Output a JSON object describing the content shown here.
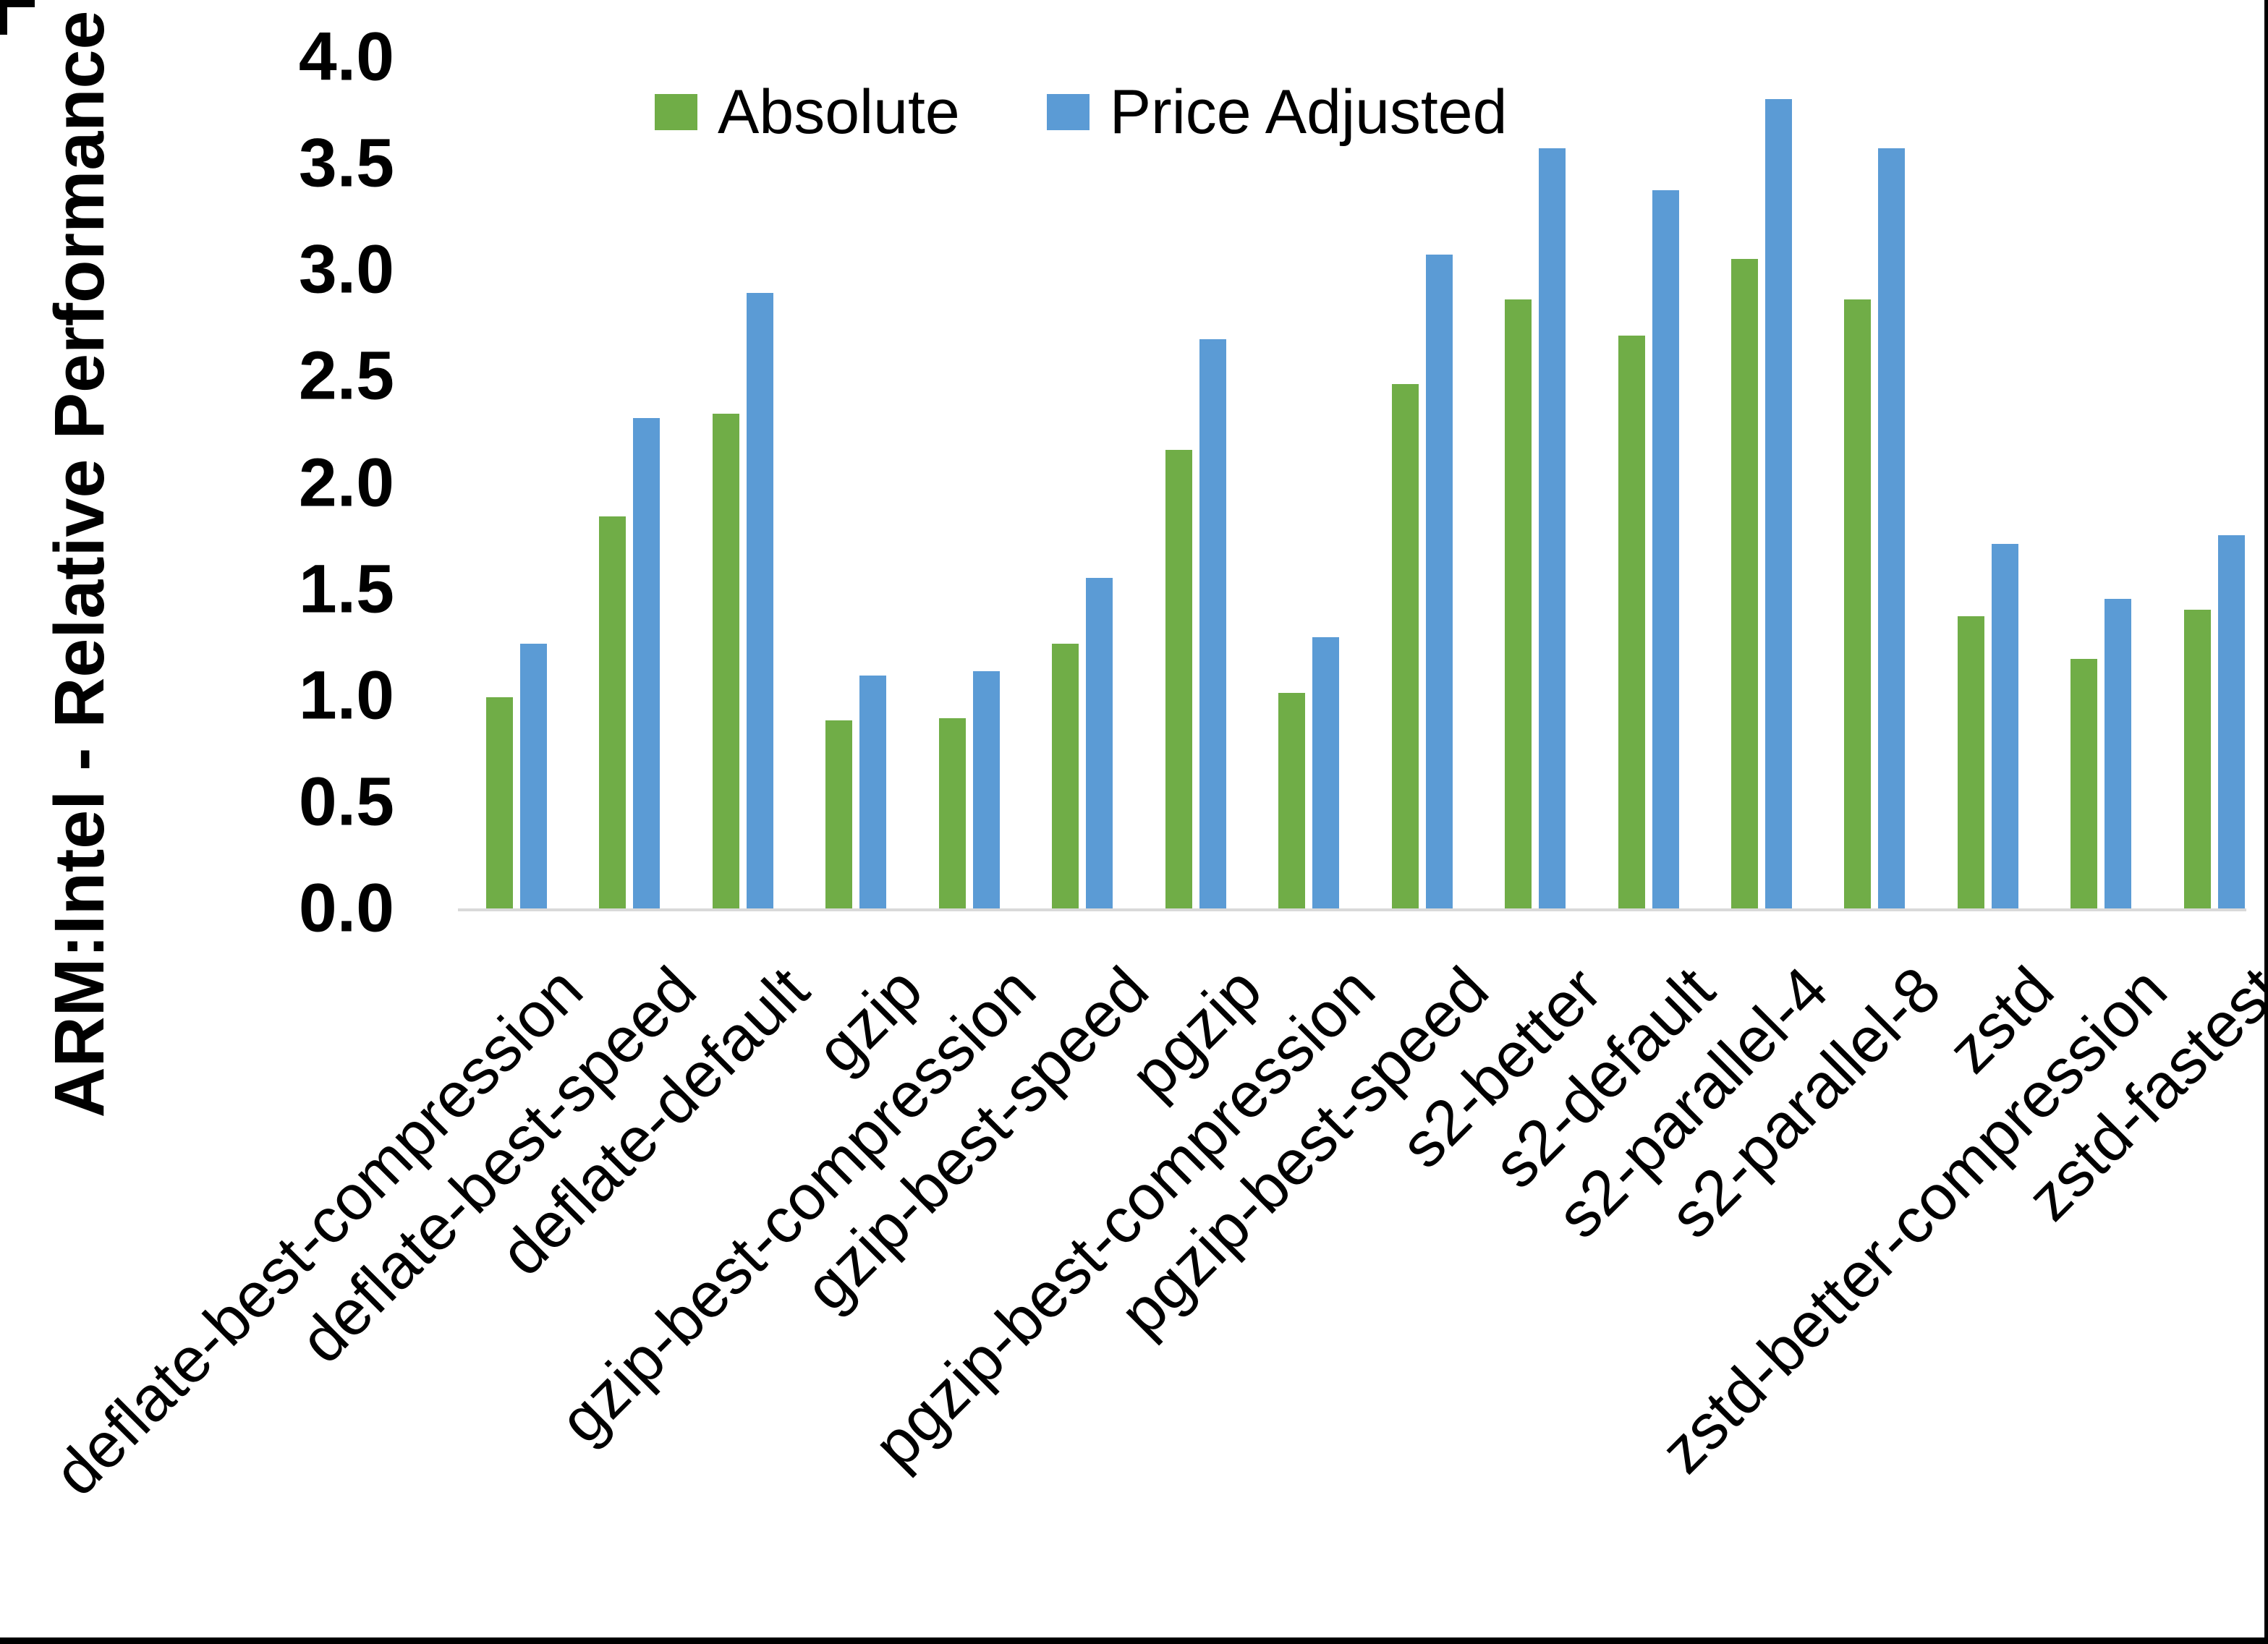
{
  "page": {
    "background": "#FFFFFF",
    "frame_color": "#000000"
  },
  "legend": [
    {
      "label": "Absolute",
      "color": "#70AD47"
    },
    {
      "label": "Price Adjusted",
      "color": "#5B9BD5"
    }
  ],
  "y_axis": {
    "title": "ARM:Intel - Relative Performance",
    "ticks": [
      "0.0",
      "0.5",
      "1.0",
      "1.5",
      "2.0",
      "2.5",
      "3.0",
      "3.5",
      "4.0"
    ],
    "min": 0.0,
    "max": 4.0,
    "step": 0.5
  },
  "chart_data": {
    "type": "bar",
    "title": "",
    "xlabel": "",
    "ylabel": "ARM:Intel - Relative Performance",
    "ylim": [
      0.0,
      4.0
    ],
    "grid": false,
    "legend_position": "top-center",
    "axis_line_color": "#D9D9D9",
    "categories": [
      "deflate-best-compression",
      "deflate-best-speed",
      "deflate-default",
      "gzip",
      "gzip-best-compression",
      "gzip-best-speed",
      "pgzip",
      "pgzip-best-compression",
      "pgzip-best-speed",
      "s2-better",
      "s2-default",
      "s2-parallel-4",
      "s2-parallel-8",
      "zstd",
      "zstd-better-compression",
      "zstd-fastest"
    ],
    "series": [
      {
        "name": "Absolute",
        "color": "#70AD47",
        "values": [
          1.0,
          1.85,
          2.33,
          0.89,
          0.9,
          1.25,
          2.16,
          1.02,
          2.47,
          2.87,
          2.7,
          3.06,
          2.87,
          1.38,
          1.18,
          1.41
        ]
      },
      {
        "name": "Price Adjusted",
        "color": "#5B9BD5",
        "values": [
          1.25,
          2.31,
          2.9,
          1.1,
          1.12,
          1.56,
          2.68,
          1.28,
          3.08,
          3.58,
          3.38,
          3.81,
          3.58,
          1.72,
          1.46,
          1.76
        ]
      }
    ]
  }
}
